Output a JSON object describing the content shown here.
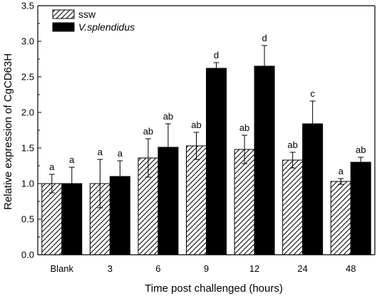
{
  "chart_data": {
    "type": "bar",
    "xlabel": "Time post challenged (hours)",
    "ylabel": "Relative expression of CgCD63H",
    "ylim": [
      0,
      3.5
    ],
    "yticks": [
      "0.0",
      "0.5",
      "1.0",
      "1.5",
      "2.0",
      "2.5",
      "3.0",
      "3.5"
    ],
    "categories": [
      "Blank",
      "3",
      "6",
      "9",
      "12",
      "24",
      "48"
    ],
    "legend_position": "top-left",
    "series": [
      {
        "name": "ssw",
        "fill": "hatched",
        "values": [
          1.0,
          1.0,
          1.36,
          1.53,
          1.48,
          1.33,
          1.03
        ],
        "errors": [
          0.13,
          0.34,
          0.27,
          0.19,
          0.2,
          0.11,
          0.04
        ],
        "labels": [
          "a",
          "a",
          "ab",
          "ab",
          "ab",
          "ab",
          "a"
        ]
      },
      {
        "name": "V.splendidus",
        "fill": "solid",
        "color": "#000000",
        "values": [
          1.0,
          1.1,
          1.51,
          2.62,
          2.65,
          1.84,
          1.3
        ],
        "errors": [
          0.23,
          0.22,
          0.33,
          0.08,
          0.29,
          0.32,
          0.07
        ],
        "labels": [
          "a",
          "a",
          "ab",
          "d",
          "d",
          "c",
          "ab"
        ]
      }
    ]
  }
}
